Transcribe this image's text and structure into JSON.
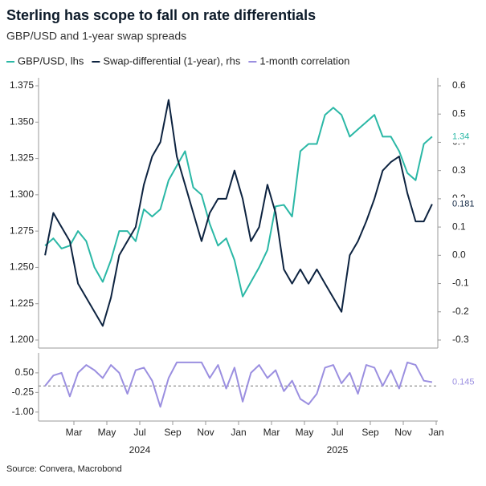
{
  "chart_data": {
    "type": "line",
    "title": "Sterling has scope to fall on rate differentials",
    "subtitle": "GBP/USD and 1-year swap spreads",
    "source": "Source: Convera, Macrobond",
    "x": [
      "2024-01",
      "2024-01",
      "2024-02",
      "2024-02",
      "2024-03",
      "2024-03",
      "2024-04",
      "2024-04",
      "2024-05",
      "2024-05",
      "2024-06",
      "2024-06",
      "2024-07",
      "2024-07",
      "2024-08",
      "2024-08",
      "2024-09",
      "2024-09",
      "2024-10",
      "2024-10",
      "2024-11",
      "2024-11",
      "2024-12",
      "2024-12",
      "2025-01",
      "2025-01",
      "2025-02",
      "2025-02",
      "2025-03",
      "2025-03",
      "2025-04",
      "2025-04",
      "2025-05",
      "2025-05",
      "2025-06",
      "2025-06",
      "2025-07",
      "2025-07",
      "2025-08",
      "2025-08",
      "2025-09",
      "2025-09",
      "2025-10",
      "2025-10",
      "2025-11",
      "2025-11",
      "2025-12",
      "2025-12"
    ],
    "xlim": [
      "2024-01",
      "2026-01"
    ],
    "xticks": [
      {
        "value": "2024-03",
        "label": "Mar"
      },
      {
        "value": "2024-05",
        "label": "May"
      },
      {
        "value": "2024-07",
        "label": "Jul"
      },
      {
        "value": "2024-09",
        "label": "Sep"
      },
      {
        "value": "2024-11",
        "label": "Nov"
      },
      {
        "value": "2025-01",
        "label": "Jan"
      },
      {
        "value": "2025-03",
        "label": "Mar"
      },
      {
        "value": "2025-05",
        "label": "May"
      },
      {
        "value": "2025-07",
        "label": "Jul"
      },
      {
        "value": "2025-09",
        "label": "Sep"
      },
      {
        "value": "2025-11",
        "label": "Nov"
      },
      {
        "value": "2026-01",
        "label": "Jan"
      }
    ],
    "year_labels": [
      {
        "value": "2024-07",
        "label": "2024"
      },
      {
        "value": "2025-07",
        "label": "2025"
      }
    ],
    "ylim": [
      1.2,
      1.375
    ],
    "yticks": [
      {
        "value": 1.2,
        "label": "1.200"
      },
      {
        "value": 1.225,
        "label": "1.225"
      },
      {
        "value": 1.25,
        "label": "1.250"
      },
      {
        "value": 1.275,
        "label": "1.275"
      },
      {
        "value": 1.3,
        "label": "1.300"
      },
      {
        "value": 1.325,
        "label": "1.325"
      },
      {
        "value": 1.35,
        "label": "1.350"
      },
      {
        "value": 1.375,
        "label": "1.375"
      }
    ],
    "y2lim": [
      -0.3,
      0.6
    ],
    "y2ticks": [
      0.6,
      0.5,
      0.4,
      0.3,
      0.2,
      0.1,
      {
        "value": 0,
        "label": "0.0"
      },
      -0.1,
      -0.2,
      -0.3
    ],
    "lower_ylim": [
      -1.25,
      1.0
    ],
    "lower_yticks": [
      {
        "value": 0.5,
        "label": "0.50"
      },
      {
        "value": -0.25,
        "label": "-0.25"
      },
      {
        "value": -1,
        "label": "-1.00"
      }
    ],
    "lower_reference_line": 0,
    "series": [
      {
        "name": "GBP/USD, lhs",
        "color": "#2bb8a6",
        "axis": "y",
        "last_label": "1.34",
        "values": [
          1.265,
          1.27,
          1.263,
          1.265,
          1.275,
          1.268,
          1.25,
          1.24,
          1.255,
          1.275,
          1.275,
          1.268,
          1.29,
          1.285,
          1.29,
          1.31,
          1.32,
          1.33,
          1.305,
          1.3,
          1.28,
          1.265,
          1.27,
          1.255,
          1.23,
          1.24,
          1.25,
          1.262,
          1.292,
          1.293,
          1.285,
          1.33,
          1.335,
          1.335,
          1.355,
          1.36,
          1.355,
          1.34,
          1.345,
          1.35,
          1.355,
          1.34,
          1.34,
          1.33,
          1.315,
          1.31,
          1.335,
          1.34
        ]
      },
      {
        "name": "Swap-differential (1-year), rhs",
        "color": "#0d2340",
        "axis": "y2",
        "last_label": "0.181",
        "values": [
          0.0,
          0.15,
          0.1,
          0.05,
          -0.1,
          -0.15,
          -0.2,
          -0.25,
          -0.15,
          0.0,
          0.05,
          0.1,
          0.25,
          0.35,
          0.4,
          0.55,
          0.35,
          0.25,
          0.15,
          0.05,
          0.15,
          0.2,
          0.2,
          0.3,
          0.2,
          0.05,
          0.1,
          0.25,
          0.15,
          -0.05,
          -0.1,
          -0.05,
          -0.1,
          -0.05,
          -0.1,
          -0.15,
          -0.2,
          0.0,
          0.05,
          0.12,
          0.2,
          0.3,
          0.33,
          0.35,
          0.22,
          0.12,
          0.12,
          0.181
        ]
      },
      {
        "name": "1-month correlation",
        "color": "#9b8fe0",
        "axis": "lower",
        "last_label": "0.145",
        "values": [
          0.0,
          0.4,
          0.5,
          -0.4,
          0.5,
          0.8,
          0.6,
          0.3,
          0.8,
          0.5,
          -0.3,
          0.6,
          0.7,
          0.2,
          -0.8,
          0.3,
          0.9,
          0.9,
          0.9,
          0.9,
          0.3,
          0.8,
          -0.1,
          0.7,
          -0.6,
          0.5,
          0.8,
          0.3,
          0.6,
          -0.2,
          0.2,
          -0.5,
          -0.7,
          -0.3,
          0.7,
          0.8,
          0.1,
          0.5,
          -0.3,
          0.8,
          0.7,
          0.0,
          0.6,
          -0.1,
          0.9,
          0.8,
          0.2,
          0.145
        ]
      }
    ]
  }
}
